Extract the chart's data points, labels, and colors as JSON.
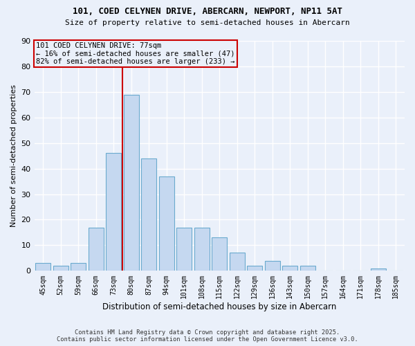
{
  "title_line1": "101, COED CELYNEN DRIVE, ABERCARN, NEWPORT, NP11 5AT",
  "title_line2": "Size of property relative to semi-detached houses in Abercarn",
  "xlabel": "Distribution of semi-detached houses by size in Abercarn",
  "ylabel": "Number of semi-detached properties",
  "categories": [
    "45sqm",
    "52sqm",
    "59sqm",
    "66sqm",
    "73sqm",
    "80sqm",
    "87sqm",
    "94sqm",
    "101sqm",
    "108sqm",
    "115sqm",
    "122sqm",
    "129sqm",
    "136sqm",
    "143sqm",
    "150sqm",
    "157sqm",
    "164sqm",
    "171sqm",
    "178sqm",
    "185sqm"
  ],
  "values": [
    3,
    2,
    3,
    17,
    46,
    69,
    44,
    37,
    17,
    17,
    13,
    7,
    2,
    4,
    2,
    2,
    0,
    0,
    0,
    1,
    0
  ],
  "bar_color": "#c5d8f0",
  "bar_edge_color": "#6aaace",
  "vline_x": 4.5,
  "pct_smaller": 16,
  "count_smaller": 47,
  "pct_larger": 82,
  "count_larger": 233,
  "annotation_label": "101 COED CELYNEN DRIVE: 77sqm",
  "vline_color": "#cc0000",
  "box_edge_color": "#cc0000",
  "ylim": [
    0,
    90
  ],
  "yticks": [
    0,
    10,
    20,
    30,
    40,
    50,
    60,
    70,
    80,
    90
  ],
  "bg_color": "#eaf0fa",
  "grid_color": "#ffffff",
  "footer_line1": "Contains HM Land Registry data © Crown copyright and database right 2025.",
  "footer_line2": "Contains public sector information licensed under the Open Government Licence v3.0."
}
